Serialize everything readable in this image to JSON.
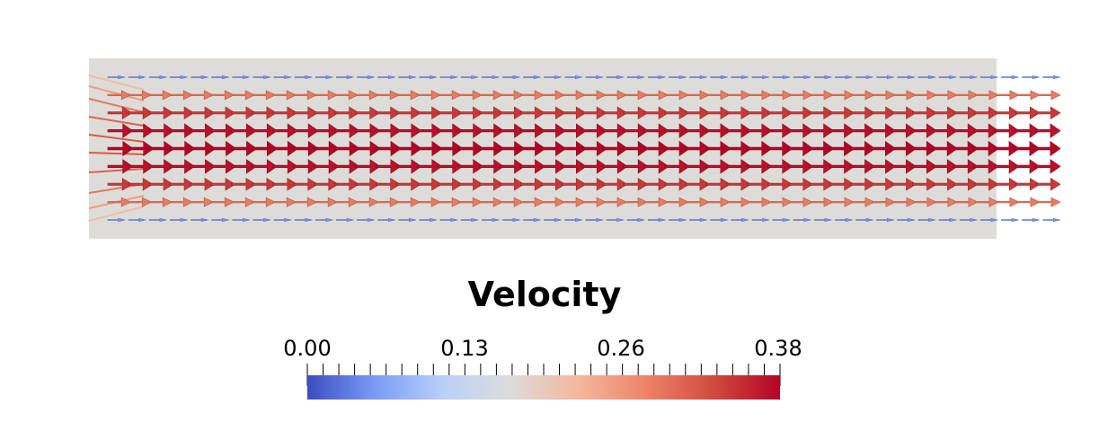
{
  "legend": {
    "title": "Velocity",
    "tick_labels": [
      "0.00",
      "0.13",
      "0.26",
      "0.38"
    ],
    "range": [
      0.0,
      0.38
    ],
    "colormap": [
      "#3b4cc0",
      "#7a9bf6",
      "#b9d0f9",
      "#dddcdc",
      "#f4b89e",
      "#ee8468",
      "#d24b40",
      "#b40426"
    ]
  },
  "domain": {
    "background": "#dedcd8"
  },
  "field": {
    "rows": [
      {
        "magnitude": 0.05
      },
      {
        "magnitude": 0.28
      },
      {
        "magnitude": 0.34
      },
      {
        "magnitude": 0.37
      },
      {
        "magnitude": 0.38
      },
      {
        "magnitude": 0.37
      },
      {
        "magnitude": 0.34
      },
      {
        "magnitude": 0.28
      },
      {
        "magnitude": 0.05
      }
    ],
    "columns": 46
  }
}
